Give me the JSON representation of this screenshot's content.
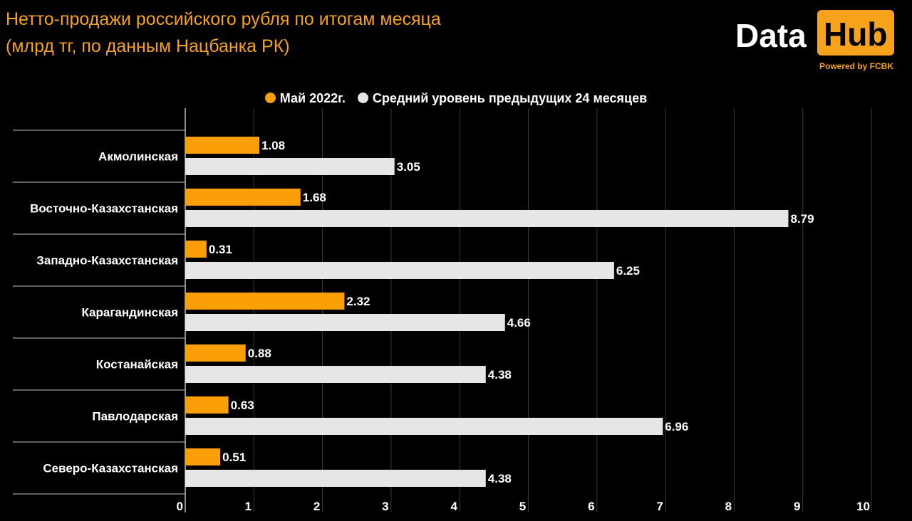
{
  "header": {
    "title_line1": "Нетто-продажи российского рубля по итогам месяца",
    "title_line2": "(млрд тг, по данным Нацбанка РК)"
  },
  "logo": {
    "word": "Data",
    "box_word": "Hub",
    "sub": "Powered by FCBK"
  },
  "colors": {
    "background": "#000000",
    "accent": "#f7a21b",
    "series_1": "#fa9f07",
    "series_2": "#e6e6e6",
    "grid": "#3a3a3a"
  },
  "chart_data": {
    "type": "bar",
    "orientation": "horizontal",
    "title": "Нетто-продажи российского рубля по итогам месяца",
    "subtitle": "(млрд тг, по данным Нацбанка РК)",
    "categories": [
      "Акмолинская",
      "Восточно-Казахстанская",
      "Западно-Казахстанская",
      "Карагандинская",
      "Костанайская",
      "Павлодарская",
      "Северо-Казахстанская"
    ],
    "series": [
      {
        "name": "Май 2022г.",
        "values": [
          1.08,
          1.68,
          0.31,
          2.32,
          0.88,
          0.63,
          0.51
        ]
      },
      {
        "name": "Средний уровень предыдущих 24 месяцев",
        "values": [
          3.05,
          8.79,
          6.25,
          4.66,
          4.38,
          6.96,
          4.38
        ]
      }
    ],
    "x_ticks": [
      0,
      1,
      2,
      3,
      4,
      5,
      6,
      7,
      8,
      9,
      10
    ],
    "xlim": [
      0,
      10
    ],
    "grid": true,
    "legend": "top-center",
    "data_labels": true
  }
}
